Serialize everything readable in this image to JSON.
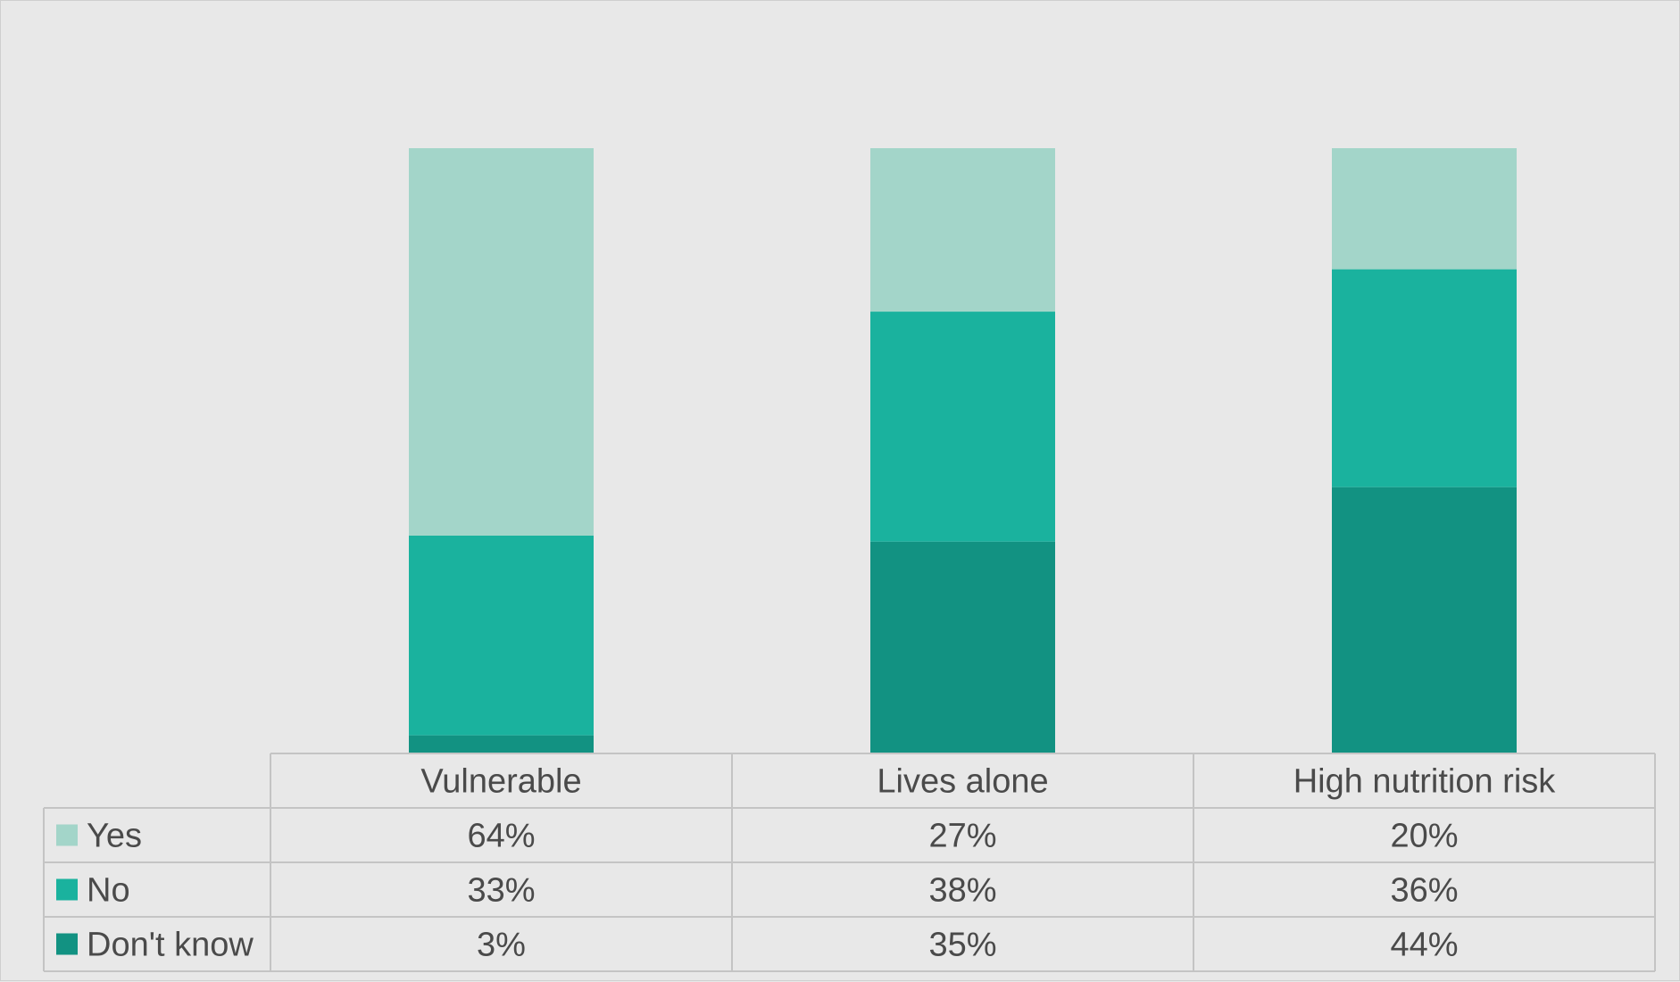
{
  "chart_data": {
    "type": "bar",
    "stacked": true,
    "title": "",
    "xlabel": "",
    "ylabel": "",
    "ylim": [
      0,
      100
    ],
    "grid": false,
    "legend": "data-table-left",
    "categories": [
      "Vulnerable",
      "Lives alone",
      "High nutrition risk"
    ],
    "series": [
      {
        "name": "Yes",
        "color": "#a3d5c9",
        "values": [
          64,
          27,
          20
        ],
        "labels": [
          "64%",
          "27%",
          "20%"
        ]
      },
      {
        "name": "No",
        "color": "#1ab29e",
        "values": [
          33,
          38,
          36
        ],
        "labels": [
          "33%",
          "38%",
          "36%"
        ]
      },
      {
        "name": "Don't know",
        "color": "#129282",
        "values": [
          3,
          35,
          44
        ],
        "labels": [
          "3%",
          "35%",
          "44%"
        ]
      }
    ]
  }
}
